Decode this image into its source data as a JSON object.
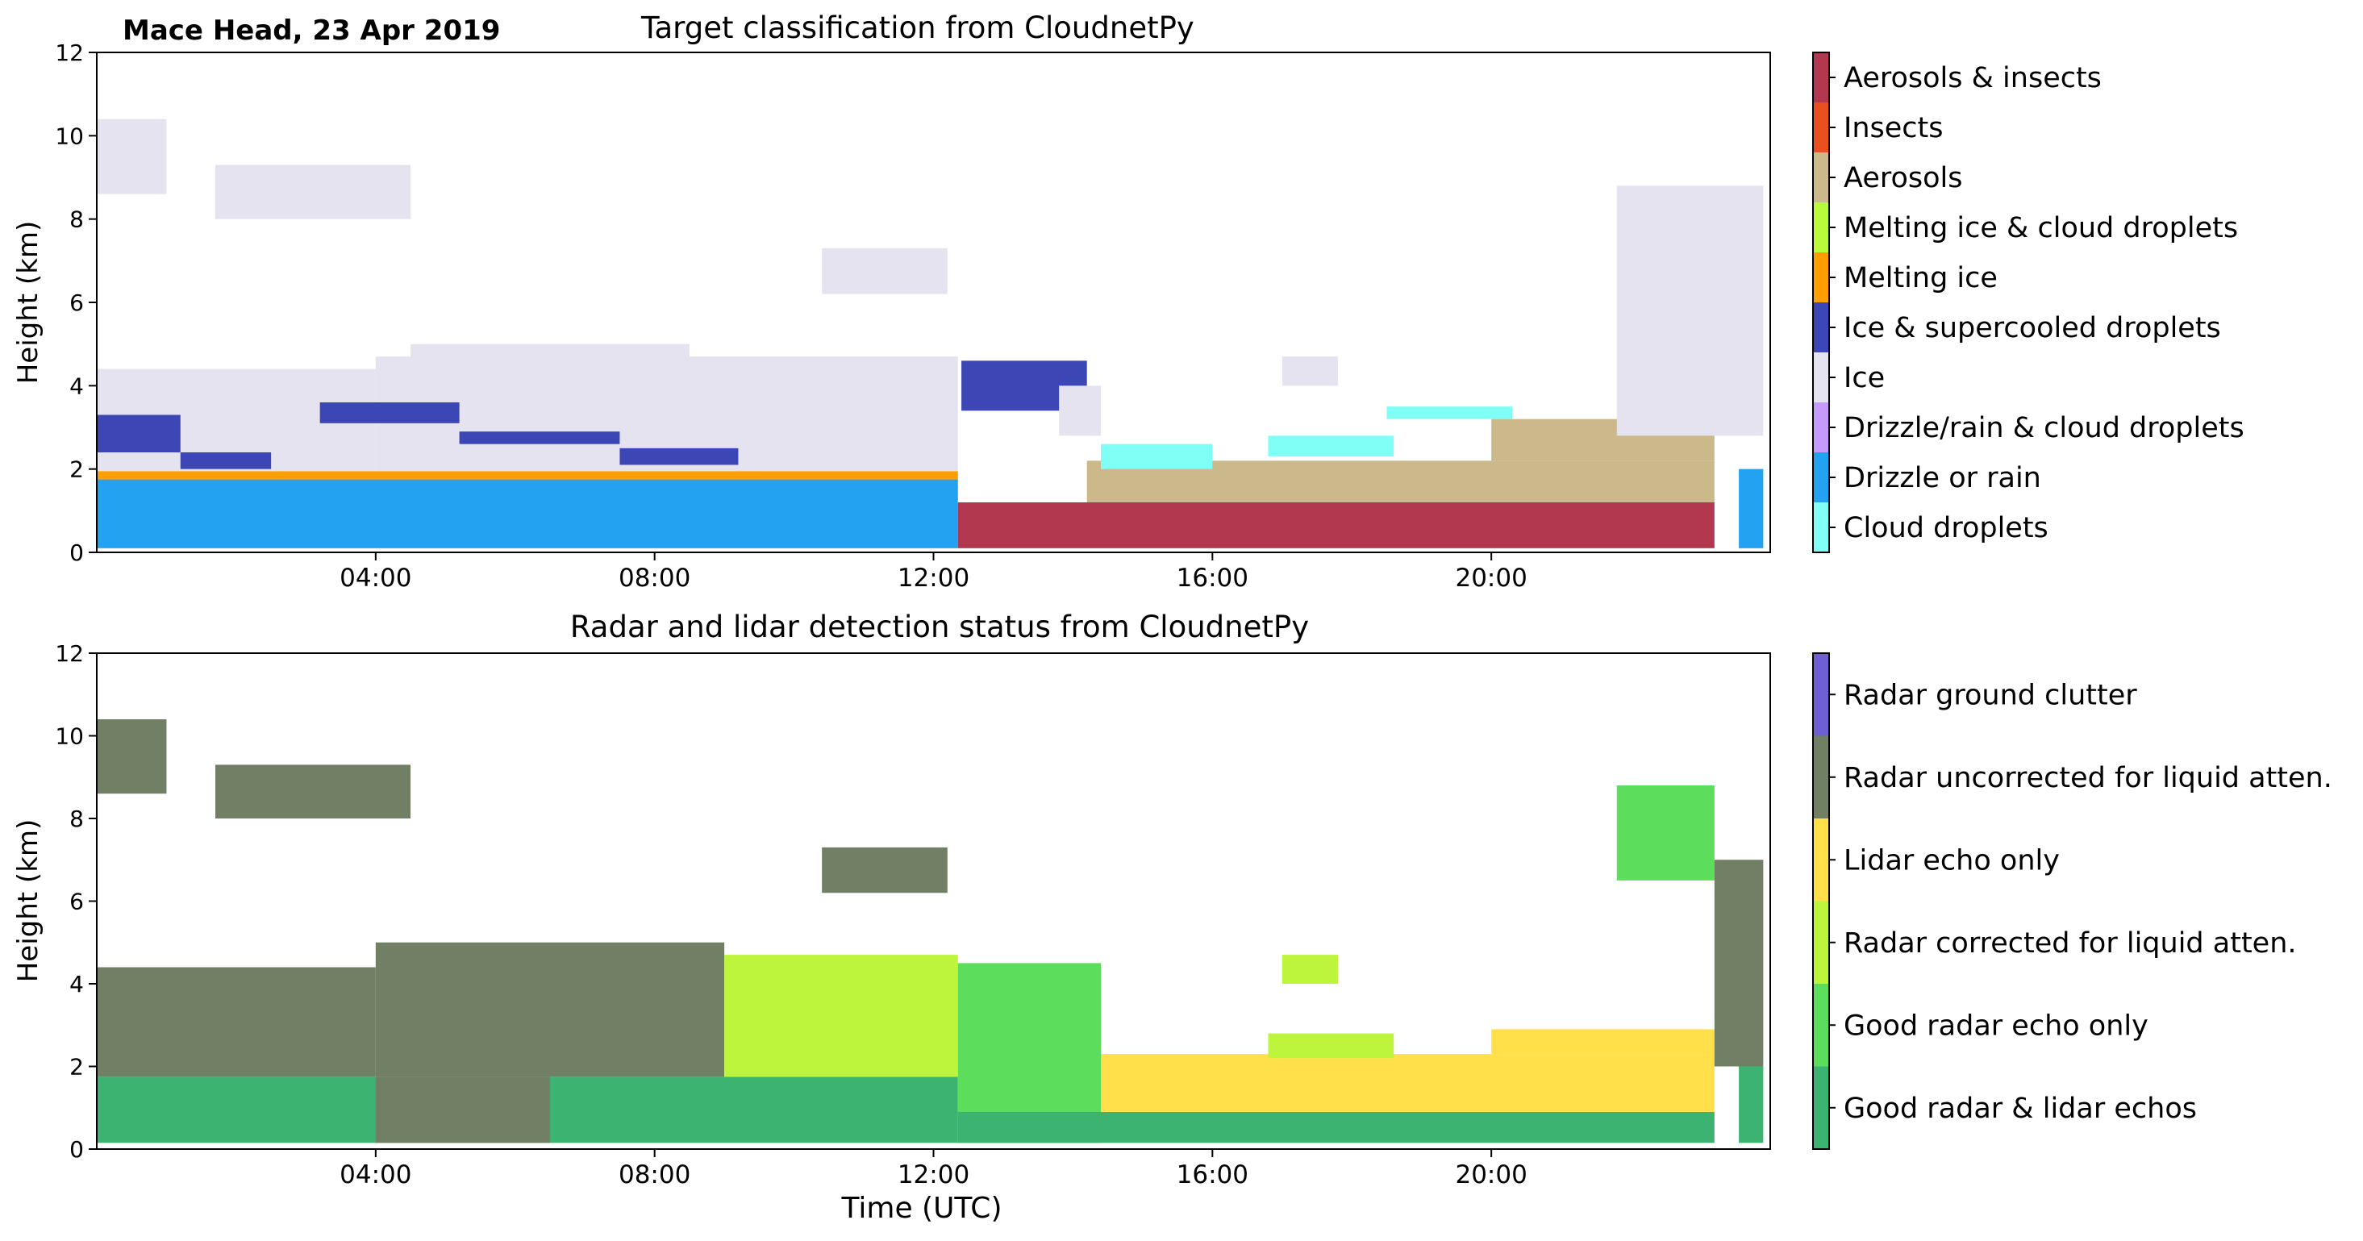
{
  "figure": {
    "site_date": "Mace Head, 23 Apr 2019",
    "xlabel": "Time (UTC)"
  },
  "chart_data": [
    {
      "type": "heatmap",
      "title": "Target classification from CloudnetPy",
      "ylabel": "Height (km)",
      "xlabel": "",
      "xlim": [
        0,
        24
      ],
      "ylim": [
        0,
        12
      ],
      "xticks": [
        4,
        8,
        12,
        16,
        20
      ],
      "xtick_labels": [
        "04:00",
        "08:00",
        "12:00",
        "16:00",
        "20:00"
      ],
      "yticks": [
        0,
        2,
        4,
        6,
        8,
        10,
        12
      ],
      "ytick_labels": [
        "0",
        "2",
        "4",
        "6",
        "8",
        "10",
        "12"
      ],
      "legend_position": "right (colorbar)",
      "categories": [
        {
          "label": "Cloud droplets",
          "color": "#7ffff5"
        },
        {
          "label": "Drizzle or rain",
          "color": "#22a2f0"
        },
        {
          "label": "Drizzle/rain & cloud droplets",
          "color": "#c49bfa"
        },
        {
          "label": "Ice",
          "color": "#e5e3f0"
        },
        {
          "label": "Ice & supercooled droplets",
          "color": "#3c46b4"
        },
        {
          "label": "Melting ice",
          "color": "#ff9e00"
        },
        {
          "label": "Melting ice & cloud droplets",
          "color": "#bafa3c"
        },
        {
          "label": "Aerosols",
          "color": "#cbb98b"
        },
        {
          "label": "Insects",
          "color": "#e85020"
        },
        {
          "label": "Aerosols & insects",
          "color": "#b23850"
        }
      ],
      "regions": [
        {
          "cat": 1,
          "x0": 0.0,
          "x1": 12.35,
          "y0": 0.1,
          "y1": 1.75
        },
        {
          "cat": 5,
          "x0": 0.0,
          "x1": 12.35,
          "y0": 1.75,
          "y1": 1.95
        },
        {
          "cat": 3,
          "x0": 0.0,
          "x1": 4.0,
          "y0": 1.95,
          "y1": 4.4
        },
        {
          "cat": 3,
          "x0": 4.0,
          "x1": 12.35,
          "y0": 1.95,
          "y1": 4.7
        },
        {
          "cat": 3,
          "x0": 4.5,
          "x1": 8.5,
          "y0": 4.5,
          "y1": 5.0
        },
        {
          "cat": 4,
          "x0": 0.0,
          "x1": 1.2,
          "y0": 2.4,
          "y1": 3.3
        },
        {
          "cat": 4,
          "x0": 1.2,
          "x1": 2.5,
          "y0": 2.0,
          "y1": 2.4
        },
        {
          "cat": 4,
          "x0": 3.2,
          "x1": 5.2,
          "y0": 3.1,
          "y1": 3.6
        },
        {
          "cat": 4,
          "x0": 5.2,
          "x1": 7.5,
          "y0": 2.6,
          "y1": 2.9
        },
        {
          "cat": 4,
          "x0": 7.5,
          "x1": 9.2,
          "y0": 2.1,
          "y1": 2.5
        },
        {
          "cat": 3,
          "x0": 0.0,
          "x1": 1.0,
          "y0": 8.6,
          "y1": 10.4
        },
        {
          "cat": 3,
          "x0": 1.7,
          "x1": 4.5,
          "y0": 8.0,
          "y1": 9.3
        },
        {
          "cat": 3,
          "x0": 10.4,
          "x1": 12.2,
          "y0": 6.2,
          "y1": 7.3
        },
        {
          "cat": 4,
          "x0": 12.4,
          "x1": 14.2,
          "y0": 3.4,
          "y1": 4.6
        },
        {
          "cat": 3,
          "x0": 13.8,
          "x1": 14.4,
          "y0": 2.8,
          "y1": 4.0
        },
        {
          "cat": 9,
          "x0": 12.35,
          "x1": 23.2,
          "y0": 0.1,
          "y1": 1.2
        },
        {
          "cat": 7,
          "x0": 14.2,
          "x1": 23.2,
          "y0": 1.2,
          "y1": 2.2
        },
        {
          "cat": 7,
          "x0": 20.0,
          "x1": 23.2,
          "y0": 2.2,
          "y1": 3.2
        },
        {
          "cat": 0,
          "x0": 14.4,
          "x1": 16.0,
          "y0": 2.0,
          "y1": 2.6
        },
        {
          "cat": 0,
          "x0": 16.8,
          "x1": 18.6,
          "y0": 2.3,
          "y1": 2.8
        },
        {
          "cat": 0,
          "x0": 18.5,
          "x1": 20.3,
          "y0": 3.2,
          "y1": 3.5
        },
        {
          "cat": 3,
          "x0": 17.0,
          "x1": 17.8,
          "y0": 4.0,
          "y1": 4.7
        },
        {
          "cat": 3,
          "x0": 21.8,
          "x1": 23.9,
          "y0": 2.8,
          "y1": 8.8
        },
        {
          "cat": 1,
          "x0": 23.55,
          "x1": 23.9,
          "y0": 0.1,
          "y1": 2.0
        }
      ]
    },
    {
      "type": "heatmap",
      "title": "Radar and lidar detection status from CloudnetPy",
      "ylabel": "Height (km)",
      "xlabel": "Time (UTC)",
      "xlim": [
        0,
        24
      ],
      "ylim": [
        0,
        12
      ],
      "xticks": [
        4,
        8,
        12,
        16,
        20
      ],
      "xtick_labels": [
        "04:00",
        "08:00",
        "12:00",
        "16:00",
        "20:00"
      ],
      "yticks": [
        0,
        2,
        4,
        6,
        8,
        10,
        12
      ],
      "ytick_labels": [
        "0",
        "2",
        "4",
        "6",
        "8",
        "10",
        "12"
      ],
      "legend_position": "right (colorbar)",
      "categories": [
        {
          "label": "Good radar & lidar echos",
          "color": "#3cb371"
        },
        {
          "label": "Good radar echo only",
          "color": "#5cde5c"
        },
        {
          "label": "Radar corrected for liquid atten.",
          "color": "#bdf53c"
        },
        {
          "label": "Lidar echo only",
          "color": "#ffe04a"
        },
        {
          "label": "Radar uncorrected for liquid atten.",
          "color": "#718064"
        },
        {
          "label": "Radar ground clutter",
          "color": "#6f5fd4"
        }
      ],
      "regions": [
        {
          "cat": 0,
          "x0": 0.0,
          "x1": 12.35,
          "y0": 0.15,
          "y1": 1.75
        },
        {
          "cat": 4,
          "x0": 0.0,
          "x1": 4.0,
          "y0": 1.75,
          "y1": 4.4
        },
        {
          "cat": 4,
          "x0": 4.0,
          "x1": 9.0,
          "y0": 1.75,
          "y1": 5.0
        },
        {
          "cat": 4,
          "x0": 4.0,
          "x1": 6.5,
          "y0": 0.15,
          "y1": 1.75
        },
        {
          "cat": 2,
          "x0": 9.0,
          "x1": 12.35,
          "y0": 1.75,
          "y1": 4.7
        },
        {
          "cat": 4,
          "x0": 0.0,
          "x1": 1.0,
          "y0": 8.6,
          "y1": 10.4
        },
        {
          "cat": 4,
          "x0": 1.7,
          "x1": 4.5,
          "y0": 8.0,
          "y1": 9.3
        },
        {
          "cat": 4,
          "x0": 10.4,
          "x1": 12.2,
          "y0": 6.2,
          "y1": 7.3
        },
        {
          "cat": 1,
          "x0": 12.35,
          "x1": 14.4,
          "y0": 0.15,
          "y1": 4.5
        },
        {
          "cat": 0,
          "x0": 12.35,
          "x1": 23.2,
          "y0": 0.15,
          "y1": 0.9
        },
        {
          "cat": 3,
          "x0": 14.4,
          "x1": 23.2,
          "y0": 0.9,
          "y1": 2.3
        },
        {
          "cat": 3,
          "x0": 20.0,
          "x1": 23.2,
          "y0": 2.3,
          "y1": 2.9
        },
        {
          "cat": 2,
          "x0": 17.0,
          "x1": 17.8,
          "y0": 4.0,
          "y1": 4.7
        },
        {
          "cat": 2,
          "x0": 16.8,
          "x1": 18.6,
          "y0": 2.2,
          "y1": 2.8
        },
        {
          "cat": 1,
          "x0": 21.8,
          "x1": 23.2,
          "y0": 6.5,
          "y1": 8.8
        },
        {
          "cat": 4,
          "x0": 23.2,
          "x1": 23.9,
          "y0": 2.0,
          "y1": 7.0
        },
        {
          "cat": 0,
          "x0": 23.55,
          "x1": 23.9,
          "y0": 0.15,
          "y1": 2.0
        }
      ]
    }
  ]
}
